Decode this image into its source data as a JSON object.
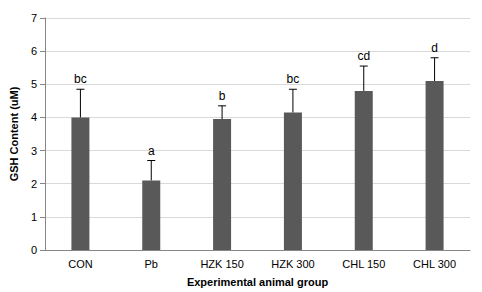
{
  "chart_data": {
    "type": "bar",
    "x_label": "Experimental animal group",
    "y_label": "GSH Content (uM)",
    "categories": [
      "CON",
      "Pb",
      "HZK 150",
      "HZK 300",
      "CHL 150",
      "CHL 300"
    ],
    "values": [
      4.0,
      2.1,
      3.95,
      4.15,
      4.8,
      5.1
    ],
    "errors": [
      0.85,
      0.6,
      0.4,
      0.7,
      0.75,
      0.7
    ],
    "annotations": [
      "bc",
      "a",
      "b",
      "bc",
      "cd",
      "d"
    ],
    "color": "#595959",
    "ylim": [
      0,
      7
    ],
    "yticks": [
      0,
      1,
      2,
      3,
      4,
      5,
      6,
      7
    ],
    "grid": true
  }
}
